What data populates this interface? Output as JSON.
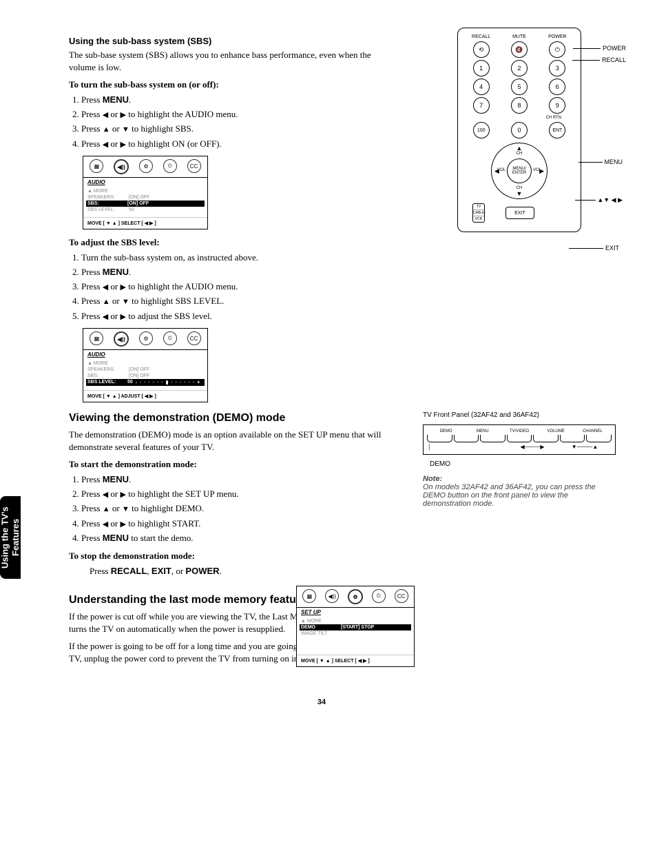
{
  "page_number": "34",
  "side_tab": "Using the TV's\nFeatures",
  "section1": {
    "heading": "Using the sub-bass system (SBS)",
    "intro": "The sub-base system (SBS) allows you to enhance bass performance, even when the volume is low.",
    "sub1_title": "To turn the sub-bass system on (or off):",
    "sub1_steps": {
      "s1a": "Press ",
      "s1b": "MENU",
      "s1c": ".",
      "s2a": "Press ",
      "s2arr1": "◀",
      "s2mid": " or ",
      "s2arr2": "▶",
      "s2b": " to highlight the AUDIO menu.",
      "s3a": "Press ",
      "s3arr1": "▲",
      "s3mid": " or ",
      "s3arr2": "▼",
      "s3b": " to highlight SBS.",
      "s4a": "Press ",
      "s4arr1": "◀",
      "s4mid": " or ",
      "s4arr2": "▶",
      "s4b": " to highlight ON (or OFF)."
    },
    "sub2_title": "To adjust the SBS level:",
    "sub2_steps": {
      "s1": "Turn the sub-bass system on, as instructed above.",
      "s2a": "Press ",
      "s2b": "MENU",
      "s2c": ".",
      "s3a": "Press ",
      "s3arr1": "◀",
      "s3mid": " or ",
      "s3arr2": "▶",
      "s3b": " to highlight the AUDIO menu.",
      "s4a": "Press ",
      "s4arr1": "▲",
      "s4mid": " or ",
      "s4arr2": "▼",
      "s4b": " to highlight SBS LEVEL.",
      "s5a": "Press ",
      "s5arr1": "◀",
      "s5mid": " or ",
      "s5arr2": "▶",
      "s5b": " to adjust the SBS level."
    }
  },
  "osd1": {
    "title": "AUDIO",
    "more": "▲ MORE",
    "r1k": "SPEAKERS:",
    "r1v": "[ON] OFF",
    "r2k": "SBS:",
    "r2v": "[ON] OFF",
    "r3k": "SBS LEVEL:",
    "r3v": "50",
    "foot": "MOVE [ ▼ ▲ ]    SELECT [ ◀  ▶ ]"
  },
  "osd2": {
    "title": "AUDIO",
    "more": "▲ MORE",
    "r1k": "SPEAKERS:",
    "r1v": "[ON] OFF",
    "r2k": "SBS:",
    "r2v": "[ON] OFF",
    "r3k": "SBS LEVEL:",
    "r3v": "50",
    "slider": "-  · · · · · · ▮ · · · · · ·  +",
    "foot": "MOVE [ ▼ ▲ ]    ADJUST [ ◀  ▶ ]"
  },
  "section2": {
    "heading": "Viewing the demonstration (DEMO) mode",
    "intro": "The demonstration (DEMO) mode is an option available on the SET UP menu that will demonstrate several features of your TV.",
    "sub1_title": "To start the demonstration mode:",
    "steps": {
      "s1a": "Press ",
      "s1b": "MENU",
      "s1c": ".",
      "s2a": "Press ",
      "s2arr1": "◀",
      "s2mid": " or ",
      "s2arr2": "▶",
      "s2b": " to highlight the SET UP menu.",
      "s3a": "Press ",
      "s3arr1": "▲",
      "s3mid": " or ",
      "s3arr2": "▼",
      "s3b": " to highlight DEMO.",
      "s4a": "Press ",
      "s4arr1": "◀",
      "s4mid": " or ",
      "s4arr2": "▶",
      "s4b": " to highlight START.",
      "s5a": "Press ",
      "s5b": "MENU",
      "s5c": " to start the demo."
    },
    "sub2_title": "To stop the demonstration mode:",
    "stop_a": "Press  ",
    "stop_b": "RECALL",
    "stop_c": ", ",
    "stop_d": "EXIT",
    "stop_e": ", or ",
    "stop_f": "POWER",
    "stop_g": "."
  },
  "osd3": {
    "title": "SET UP",
    "more": "▲ MORE",
    "r1k": "DEMO",
    "r1v": "[START] STOP",
    "r2k": "IMAGE TILT",
    "r2v": "",
    "foot": "MOVE [ ▼ ▲ ]    SELECT [ ◀  ▶ ]"
  },
  "section3": {
    "heading": "Understanding the last mode memory feature",
    "p1": "If the power is cut off while you are viewing the TV, the Last Mode Memory feature turns the TV on automatically when the power is resupplied.",
    "p2": "If the power is going to be off for a long time and you are going to be away from your TV, unplug the power cord to prevent the TV from turning on in your absence."
  },
  "remote": {
    "top_labels": {
      "l1": "RECALL",
      "l2": "MUTE",
      "l3": "POWER"
    },
    "top_icons": {
      "i1": "⟲",
      "i2": "🔇",
      "i3": "⏻"
    },
    "num": {
      "n1": "1",
      "n2": "2",
      "n3": "3",
      "n4": "4",
      "n5": "5",
      "n6": "6",
      "n7": "7",
      "n8": "8",
      "n9": "9",
      "n100": "100",
      "n0": "0",
      "ent": "ENT"
    },
    "chrtn": "CH RTN",
    "nav": {
      "center": "MENU/\nENTER",
      "ch": "CH",
      "vol": "VOL"
    },
    "switch": {
      "s1": "TV",
      "s2": "CABLE",
      "s3": "VCR"
    },
    "exit": "EXIT",
    "callouts": {
      "power": "POWER",
      "recall": "RECALL",
      "menu": "MENU",
      "arrows": "▲▼ ◀ ▶",
      "exit": "EXIT"
    }
  },
  "front_panel": {
    "title": "TV Front Panel (32AF42 and 36AF42)",
    "labels": {
      "l1": "DEMO",
      "l2": "MENU",
      "l3": "TV/VIDEO",
      "l4": "VOLUME",
      "l5": "CHANNEL"
    },
    "demo_label": "DEMO"
  },
  "note": {
    "title": "Note:",
    "body": "On models 32AF42 and 36AF42, you can press the DEMO button on the front panel to view the demonstration mode."
  },
  "icons": {
    "pic": "▦",
    "aud": "◀))",
    "set": "⚙",
    "tmr": "⏲",
    "cc": "CC"
  }
}
